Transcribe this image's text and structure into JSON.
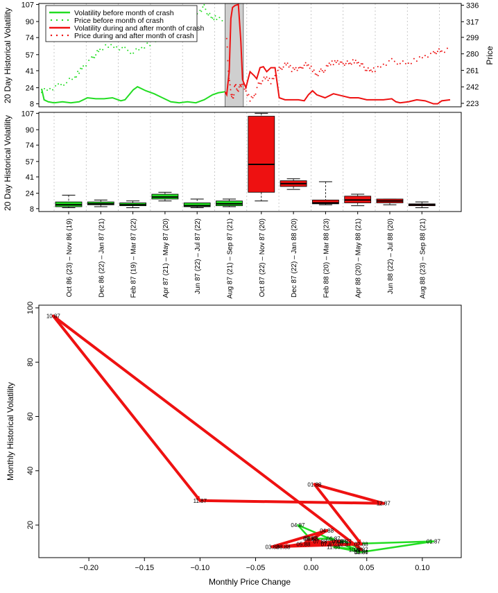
{
  "chart_data": [
    {
      "type": "line",
      "ylabel_left": "20 Day Historical Volatility",
      "ylabel_right": "Price",
      "y_ticks_left": [
        8,
        24,
        41,
        57,
        74,
        90,
        107
      ],
      "y_ticks_right": [
        223,
        242,
        261,
        280,
        299,
        317,
        336
      ],
      "ylim_left": [
        5,
        108
      ],
      "ylim_right": [
        219,
        338
      ],
      "legend_position": "top-left",
      "legend": [
        {
          "label": "Volatility before month of crash",
          "color": "#22dd22",
          "style": "solid"
        },
        {
          "label": "Price before month of crash",
          "color": "#22dd22",
          "style": "dotted"
        },
        {
          "label": "Volatility during and after month of crash",
          "color": "#ee1111",
          "style": "solid"
        },
        {
          "label": "Price during and after month of crash",
          "color": "#ee1111",
          "style": "dotted"
        }
      ],
      "x_index_range": [
        0,
        500
      ],
      "crash_shade_index": [
        220,
        242
      ],
      "volatility_before": [
        [
          0,
          23
        ],
        [
          3,
          12
        ],
        [
          8,
          10
        ],
        [
          15,
          9
        ],
        [
          25,
          10
        ],
        [
          35,
          9
        ],
        [
          45,
          10
        ],
        [
          55,
          14
        ],
        [
          65,
          13
        ],
        [
          75,
          13
        ],
        [
          85,
          14
        ],
        [
          95,
          11
        ],
        [
          100,
          12
        ],
        [
          110,
          22
        ],
        [
          115,
          25
        ],
        [
          125,
          21
        ],
        [
          135,
          18
        ],
        [
          145,
          14
        ],
        [
          155,
          10
        ],
        [
          165,
          9
        ],
        [
          175,
          10
        ],
        [
          185,
          9
        ],
        [
          195,
          12
        ],
        [
          205,
          17
        ],
        [
          212,
          19
        ],
        [
          220,
          20
        ]
      ],
      "volatility_after": [
        [
          220,
          20
        ],
        [
          222,
          17
        ],
        [
          225,
          40
        ],
        [
          227,
          93
        ],
        [
          229,
          104
        ],
        [
          232,
          106
        ],
        [
          236,
          107
        ],
        [
          239,
          70
        ],
        [
          241,
          32
        ],
        [
          245,
          24
        ],
        [
          250,
          40
        ],
        [
          255,
          36
        ],
        [
          258,
          33
        ],
        [
          262,
          44
        ],
        [
          266,
          45
        ],
        [
          270,
          40
        ],
        [
          275,
          44
        ],
        [
          280,
          44
        ],
        [
          285,
          14
        ],
        [
          292,
          12
        ],
        [
          300,
          12
        ],
        [
          308,
          12
        ],
        [
          315,
          11
        ],
        [
          320,
          17
        ],
        [
          325,
          21
        ],
        [
          330,
          17
        ],
        [
          340,
          14
        ],
        [
          350,
          18
        ],
        [
          360,
          16
        ],
        [
          370,
          14
        ],
        [
          380,
          14
        ],
        [
          390,
          12
        ],
        [
          400,
          12
        ],
        [
          410,
          12
        ],
        [
          420,
          13
        ],
        [
          425,
          10
        ],
        [
          430,
          9
        ],
        [
          440,
          10
        ],
        [
          450,
          12
        ],
        [
          460,
          11
        ],
        [
          470,
          8
        ],
        [
          475,
          8
        ],
        [
          480,
          11
        ],
        [
          490,
          12
        ]
      ],
      "price_before": [
        [
          0,
          238
        ],
        [
          10,
          240
        ],
        [
          20,
          243
        ],
        [
          30,
          248
        ],
        [
          40,
          252
        ],
        [
          45,
          260
        ],
        [
          50,
          266
        ],
        [
          60,
          274
        ],
        [
          65,
          280
        ],
        [
          70,
          284
        ],
        [
          80,
          290
        ],
        [
          90,
          288
        ],
        [
          100,
          285
        ],
        [
          110,
          282
        ],
        [
          120,
          286
        ],
        [
          130,
          292
        ],
        [
          140,
          297
        ],
        [
          150,
          302
        ],
        [
          160,
          310
        ],
        [
          170,
          316
        ],
        [
          180,
          322
        ],
        [
          190,
          330
        ],
        [
          195,
          334
        ],
        [
          200,
          326
        ],
        [
          205,
          320
        ],
        [
          210,
          322
        ],
        [
          220,
          318
        ]
      ],
      "price_after": [
        [
          222,
          300
        ],
        [
          224,
          260
        ],
        [
          226,
          242
        ],
        [
          228,
          232
        ],
        [
          230,
          228
        ],
        [
          232,
          246
        ],
        [
          235,
          238
        ],
        [
          238,
          242
        ],
        [
          240,
          246
        ],
        [
          245,
          236
        ],
        [
          250,
          228
        ],
        [
          255,
          232
        ],
        [
          260,
          244
        ],
        [
          265,
          250
        ],
        [
          270,
          252
        ],
        [
          275,
          248
        ],
        [
          280,
          255
        ],
        [
          285,
          262
        ],
        [
          290,
          266
        ],
        [
          295,
          268
        ],
        [
          300,
          262
        ],
        [
          305,
          264
        ],
        [
          310,
          262
        ],
        [
          315,
          268
        ],
        [
          320,
          266
        ],
        [
          325,
          262
        ],
        [
          330,
          256
        ],
        [
          335,
          260
        ],
        [
          340,
          262
        ],
        [
          345,
          268
        ],
        [
          350,
          270
        ],
        [
          355,
          272
        ],
        [
          360,
          268
        ],
        [
          365,
          270
        ],
        [
          370,
          268
        ],
        [
          375,
          272
        ],
        [
          380,
          270
        ],
        [
          385,
          266
        ],
        [
          390,
          262
        ],
        [
          395,
          260
        ],
        [
          400,
          262
        ],
        [
          410,
          268
        ],
        [
          420,
          272
        ],
        [
          430,
          270
        ],
        [
          440,
          268
        ],
        [
          450,
          274
        ],
        [
          460,
          278
        ],
        [
          470,
          280
        ],
        [
          475,
          284
        ],
        [
          480,
          282
        ],
        [
          490,
          285
        ]
      ]
    },
    {
      "type": "box",
      "ylabel": "20 Day Historical Volatility",
      "y_ticks": [
        8,
        24,
        41,
        57,
        74,
        90,
        107
      ],
      "ylim": [
        5,
        108
      ],
      "categories": [
        "Oct 86 (23) – Nov 86 (19)",
        "Dec 86 (22) – Jan 87 (21)",
        "Feb 87 (19) – Mar 87 (22)",
        "Apr 87 (21) – May 87 (20)",
        "Jun 87 (22) – Jul 87 (22)",
        "Aug 87 (21) – Sep 87 (21)",
        "Oct 87 (22) – Nov 87 (20)",
        "Dec 87 (22) – Jan 88 (20)",
        "Feb 88 (20) – Mar 88 (23)",
        "Apr 88 (20) – May 88 (21)",
        "Jun 88 (22) – Jul 88 (20)",
        "Aug 88 (23) – Sep 88 (21)"
      ],
      "boxes": [
        {
          "min": 9,
          "q1": 10,
          "median": 12,
          "q3": 15,
          "max": 22,
          "color": "#22dd22"
        },
        {
          "min": 10,
          "q1": 12,
          "median": 13,
          "q3": 15,
          "max": 17,
          "color": "#22dd22"
        },
        {
          "min": 9,
          "q1": 11,
          "median": 12,
          "q3": 14,
          "max": 16,
          "color": "#22dd22"
        },
        {
          "min": 16,
          "q1": 18,
          "median": 20,
          "q3": 23,
          "max": 25,
          "color": "#22dd22"
        },
        {
          "min": 9,
          "q1": 10,
          "median": 11,
          "q3": 14,
          "max": 18,
          "color": "#22dd22"
        },
        {
          "min": 10,
          "q1": 11,
          "median": 13,
          "q3": 16,
          "max": 18,
          "color": "#22dd22"
        },
        {
          "min": 16,
          "q1": 25,
          "median": 54,
          "q3": 104,
          "max": 107,
          "color": "#ee1111"
        },
        {
          "min": 28,
          "q1": 31,
          "median": 34,
          "q3": 37,
          "max": 39,
          "color": "#ee1111"
        },
        {
          "min": 12,
          "q1": 13,
          "median": 14,
          "q3": 17,
          "max": 36,
          "color": "#ee1111"
        },
        {
          "min": 11,
          "q1": 14,
          "median": 17,
          "q3": 21,
          "max": 23,
          "color": "#ee1111"
        },
        {
          "min": 12,
          "q1": 14,
          "median": 16,
          "q3": 18,
          "max": 18,
          "color": "#ee1111"
        },
        {
          "min": 9,
          "q1": 11,
          "median": 12,
          "q3": 13,
          "max": 15,
          "color": "#ee1111"
        }
      ]
    },
    {
      "type": "scatter",
      "xlabel": "Monthly Price Change",
      "ylabel": "Monthly Historical Volatility",
      "x_ticks": [
        -0.2,
        -0.15,
        -0.1,
        -0.05,
        0.0,
        0.05,
        0.1
      ],
      "x_tick_labels": [
        "−0.20",
        "−0.15",
        "−0.10",
        "−0.05",
        "0.00",
        "0.05",
        "0.10"
      ],
      "y_ticks": [
        20,
        40,
        60,
        80,
        100
      ],
      "xlim": [
        -0.245,
        0.135
      ],
      "ylim": [
        8,
        101
      ],
      "points": [
        {
          "label": "04.87",
          "x": -0.012,
          "y": 20
        },
        {
          "label": "05.87",
          "x": -0.001,
          "y": 15
        },
        {
          "label": "06.87",
          "x": 0.02,
          "y": 15
        },
        {
          "label": "07.87",
          "x": 0.015,
          "y": 13
        },
        {
          "label": "08.87",
          "x": 0.03,
          "y": 14
        },
        {
          "label": "09.87",
          "x": 0.045,
          "y": 11
        },
        {
          "label": "10.86",
          "x": 0.04,
          "y": 11
        },
        {
          "label": "11.86",
          "x": 0.02,
          "y": 12
        },
        {
          "label": "12.86",
          "x": 0.045,
          "y": 10
        },
        {
          "label": "01.87",
          "x": 0.11,
          "y": 14
        },
        {
          "label": "02.87",
          "x": 0.03,
          "y": 13
        },
        {
          "label": "03.87",
          "x": 0.045,
          "y": 10
        },
        {
          "label": "10.87",
          "x": -0.232,
          "y": 97
        },
        {
          "label": "11.87",
          "x": -0.1,
          "y": 29
        },
        {
          "label": "12.87",
          "x": 0.065,
          "y": 28
        },
        {
          "label": "01.88",
          "x": 0.003,
          "y": 35
        },
        {
          "label": "02.88",
          "x": 0.045,
          "y": 13
        },
        {
          "label": "03.88",
          "x": -0.035,
          "y": 12
        },
        {
          "label": "04.88",
          "x": 0.014,
          "y": 18
        },
        {
          "label": "05.88",
          "x": -0.007,
          "y": 13
        },
        {
          "label": "06.88",
          "x": 0.0,
          "y": 15
        },
        {
          "label": "07.88",
          "x": 0.008,
          "y": 14
        },
        {
          "label": "08.88",
          "x": -0.025,
          "y": 12
        },
        {
          "label": "09.88",
          "x": 0.025,
          "y": 14
        }
      ],
      "arrows_green": [
        [
          "10.86",
          "11.86"
        ],
        [
          "11.86",
          "12.86"
        ],
        [
          "12.86",
          "01.87"
        ],
        [
          "01.87",
          "02.87"
        ],
        [
          "02.87",
          "03.87"
        ],
        [
          "03.87",
          "04.87"
        ],
        [
          "04.87",
          "05.87"
        ],
        [
          "05.87",
          "06.87"
        ],
        [
          "06.87",
          "07.87"
        ],
        [
          "07.87",
          "08.87"
        ],
        [
          "08.87",
          "09.87"
        ],
        [
          "09.87",
          "10.87"
        ]
      ],
      "arrows_red": [
        [
          "10.87",
          "11.87"
        ],
        [
          "11.87",
          "12.87"
        ],
        [
          "12.87",
          "01.88"
        ],
        [
          "01.88",
          "02.88"
        ],
        [
          "02.88",
          "03.88"
        ],
        [
          "03.88",
          "04.88"
        ],
        [
          "04.88",
          "05.88"
        ],
        [
          "05.88",
          "06.88"
        ],
        [
          "06.88",
          "07.88"
        ],
        [
          "07.88",
          "08.88"
        ],
        [
          "08.88",
          "09.88"
        ],
        [
          "09.87",
          "10.87"
        ]
      ]
    }
  ]
}
